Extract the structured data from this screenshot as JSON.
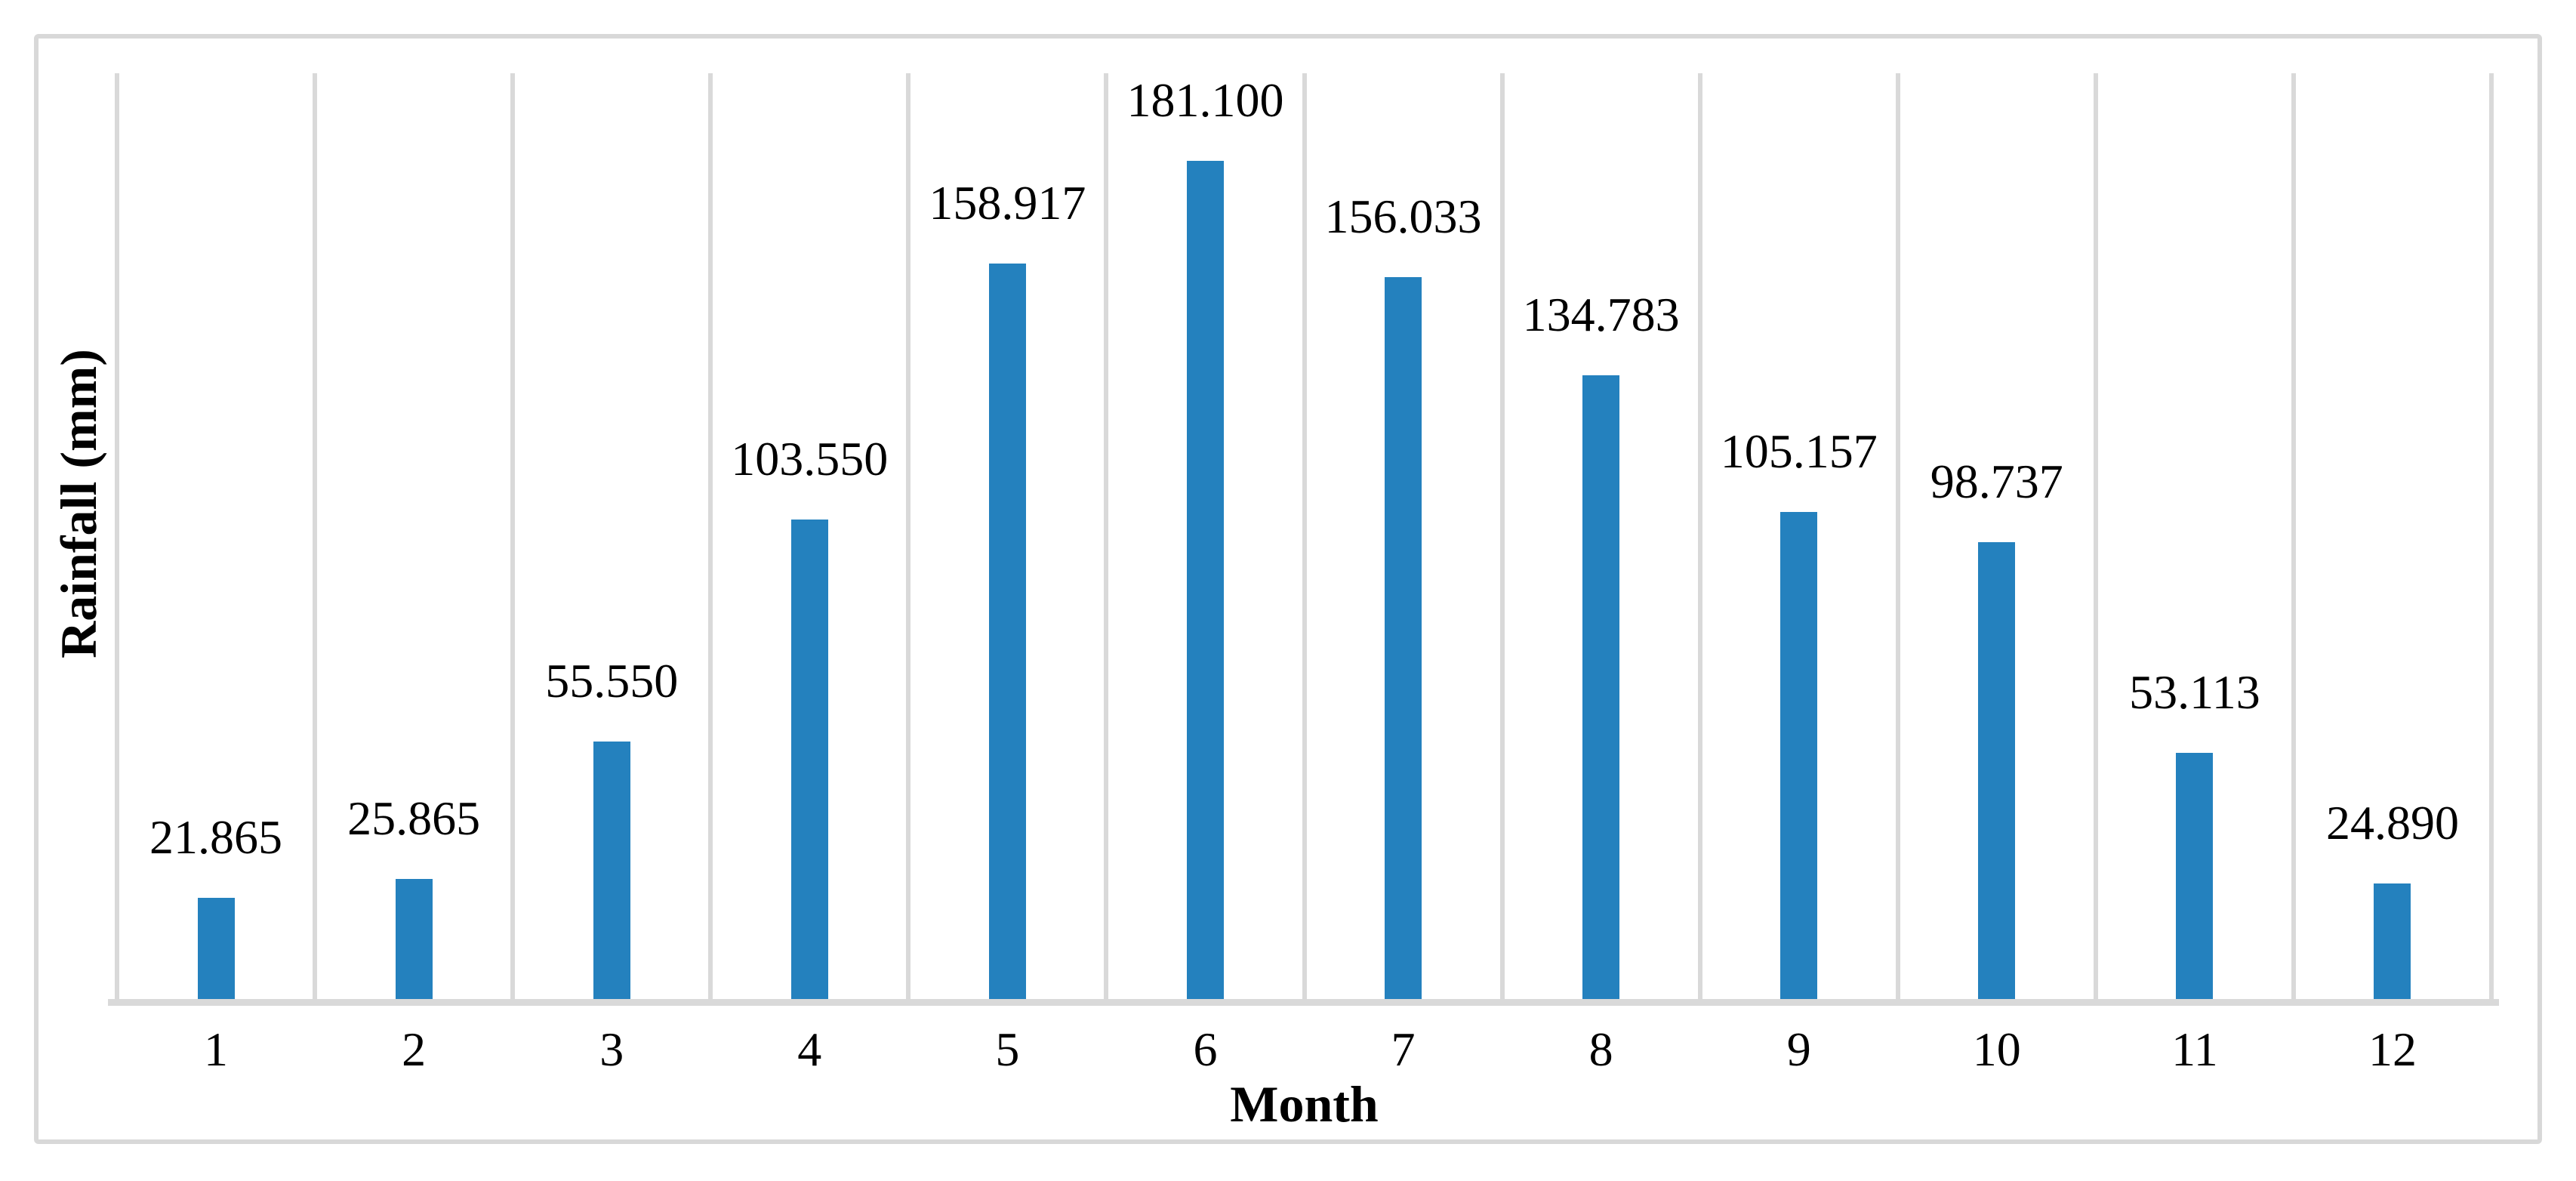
{
  "figure": {
    "background_color": "#FFFFFF",
    "border_color": "#D8D8D8"
  },
  "chart_data": {
    "type": "bar",
    "xlabel": "Month",
    "ylabel": "Rainfall (mm)",
    "categories": [
      "1",
      "2",
      "3",
      "4",
      "5",
      "6",
      "7",
      "8",
      "9",
      "10",
      "11",
      "12"
    ],
    "values": [
      21.865,
      25.865,
      55.55,
      103.55,
      158.917,
      181.1,
      156.033,
      134.783,
      105.157,
      98.737,
      53.113,
      24.89
    ],
    "data_labels": [
      "21.865",
      "25.865",
      "55.550",
      "103.550",
      "158.917",
      "181.100",
      "156.033",
      "134.783",
      "105.157",
      "98.737",
      "53.113",
      "24.890"
    ],
    "ylim": [
      0,
      200
    ],
    "grid": "vertical-category-boundaries",
    "y_axis_tick_labels": "none",
    "legend": "none",
    "bar_color": "#2481BE",
    "gridline_color": "#D9D9D9",
    "axis_line_color": "#D9D9D9",
    "text_color": "#000000"
  }
}
